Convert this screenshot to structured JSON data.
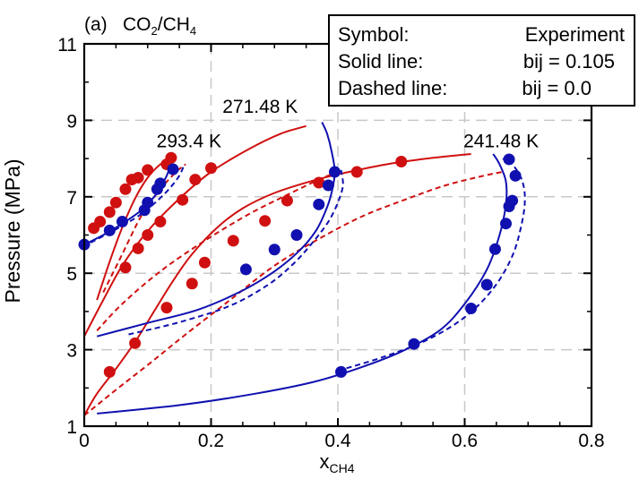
{
  "chart_data": {
    "type": "scatter",
    "panel_label": "(a)",
    "system_label": {
      "prefix": "CO",
      "sub1": "2",
      "mid": "/CH",
      "sub2": "4"
    },
    "xlabel": {
      "main": "x",
      "sub": "CH4"
    },
    "ylabel": "Pressure (MPa)",
    "xlim": [
      0,
      0.8
    ],
    "ylim": [
      1,
      11
    ],
    "x_ticks": [
      0,
      0.2,
      0.4,
      0.6,
      0.8
    ],
    "x_tick_labels": [
      "0",
      "0.2",
      "0.4",
      "0.6",
      "0.8"
    ],
    "y_ticks": [
      1,
      3,
      5,
      7,
      9,
      11
    ],
    "y_tick_labels": [
      "1",
      "3",
      "5",
      "7",
      "9",
      "11"
    ],
    "grid": true,
    "legend": {
      "placement": "top-right",
      "rows": [
        {
          "key": "Symbol:",
          "value": "Experiment"
        },
        {
          "key": "Solid line:",
          "value": "bij = 0.105"
        },
        {
          "key": "Dashed line:",
          "value": "bij = 0.0"
        }
      ]
    },
    "colors": {
      "liquid": "#d01010",
      "vapor": "#1010b0"
    },
    "annotations": [
      {
        "text": "293.4 K",
        "x": 0.114,
        "y": 8.3
      },
      {
        "text": "271.48 K",
        "x": 0.218,
        "y": 9.2
      },
      {
        "text": "241.48 K",
        "x": 0.598,
        "y": 8.3
      }
    ],
    "series": [
      {
        "role": "liquid",
        "style": "solid",
        "points": [
          [
            0.0,
            1.28
          ],
          [
            0.02,
            1.85
          ],
          [
            0.05,
            2.5
          ],
          [
            0.08,
            3.2
          ],
          [
            0.11,
            4.0
          ],
          [
            0.14,
            4.8
          ],
          [
            0.17,
            5.5
          ],
          [
            0.21,
            6.2
          ],
          [
            0.25,
            6.7
          ],
          [
            0.3,
            7.1
          ],
          [
            0.36,
            7.42
          ],
          [
            0.42,
            7.66
          ],
          [
            0.48,
            7.86
          ],
          [
            0.54,
            8.0
          ],
          [
            0.61,
            8.12
          ]
        ]
      },
      {
        "role": "liquid",
        "style": "dashed",
        "points": [
          [
            0.0,
            1.28
          ],
          [
            0.05,
            1.95
          ],
          [
            0.1,
            2.6
          ],
          [
            0.16,
            3.4
          ],
          [
            0.23,
            4.3
          ],
          [
            0.3,
            5.2
          ],
          [
            0.37,
            5.9
          ],
          [
            0.44,
            6.5
          ],
          [
            0.51,
            6.95
          ],
          [
            0.57,
            7.3
          ],
          [
            0.63,
            7.55
          ],
          [
            0.66,
            7.65
          ]
        ]
      },
      {
        "role": "vapor",
        "style": "solid",
        "points": [
          [
            0.02,
            1.33
          ],
          [
            0.15,
            1.55
          ],
          [
            0.27,
            1.85
          ],
          [
            0.36,
            2.15
          ],
          [
            0.43,
            2.5
          ],
          [
            0.5,
            2.95
          ],
          [
            0.56,
            3.5
          ],
          [
            0.6,
            4.2
          ],
          [
            0.635,
            5.1
          ],
          [
            0.655,
            6.0
          ],
          [
            0.665,
            6.8
          ],
          [
            0.665,
            7.4
          ],
          [
            0.655,
            7.85
          ],
          [
            0.645,
            8.12
          ]
        ]
      },
      {
        "role": "vapor",
        "style": "dashed",
        "points": [
          [
            0.4,
            2.45
          ],
          [
            0.47,
            2.8
          ],
          [
            0.54,
            3.25
          ],
          [
            0.6,
            3.85
          ],
          [
            0.645,
            4.6
          ],
          [
            0.675,
            5.45
          ],
          [
            0.69,
            6.3
          ],
          [
            0.695,
            6.95
          ],
          [
            0.69,
            7.45
          ],
          [
            0.675,
            7.85
          ],
          [
            0.66,
            8.0
          ]
        ]
      },
      {
        "role": "liquid",
        "style": "solid",
        "points": [
          [
            0.0,
            3.35
          ],
          [
            0.03,
            4.3
          ],
          [
            0.06,
            5.2
          ],
          [
            0.1,
            6.1
          ],
          [
            0.15,
            6.95
          ],
          [
            0.2,
            7.65
          ],
          [
            0.26,
            8.25
          ],
          [
            0.31,
            8.65
          ],
          [
            0.35,
            8.85
          ]
        ]
      },
      {
        "role": "liquid",
        "style": "dashed",
        "points": [
          [
            0.02,
            3.5
          ],
          [
            0.06,
            4.2
          ],
          [
            0.12,
            5.05
          ],
          [
            0.19,
            5.85
          ],
          [
            0.26,
            6.55
          ],
          [
            0.32,
            7.05
          ],
          [
            0.37,
            7.45
          ],
          [
            0.4,
            7.65
          ]
        ]
      },
      {
        "role": "vapor",
        "style": "solid",
        "points": [
          [
            0.02,
            3.35
          ],
          [
            0.1,
            3.7
          ],
          [
            0.18,
            4.05
          ],
          [
            0.25,
            4.55
          ],
          [
            0.3,
            5.05
          ],
          [
            0.34,
            5.6
          ],
          [
            0.365,
            6.1
          ],
          [
            0.38,
            6.6
          ],
          [
            0.39,
            7.1
          ],
          [
            0.395,
            7.65
          ],
          [
            0.39,
            8.2
          ],
          [
            0.383,
            8.65
          ],
          [
            0.375,
            8.95
          ]
        ]
      },
      {
        "role": "vapor",
        "style": "dashed",
        "points": [
          [
            0.07,
            3.4
          ],
          [
            0.15,
            3.72
          ],
          [
            0.23,
            4.15
          ],
          [
            0.29,
            4.7
          ],
          [
            0.33,
            5.25
          ],
          [
            0.36,
            5.8
          ],
          [
            0.385,
            6.35
          ],
          [
            0.4,
            6.85
          ],
          [
            0.408,
            7.3
          ],
          [
            0.405,
            7.7
          ]
        ]
      },
      {
        "role": "liquid",
        "style": "solid",
        "points": [
          [
            0.02,
            4.3
          ],
          [
            0.04,
            5.3
          ],
          [
            0.06,
            6.2
          ],
          [
            0.08,
            6.95
          ],
          [
            0.1,
            7.5
          ],
          [
            0.12,
            7.85
          ],
          [
            0.14,
            8.05
          ]
        ]
      },
      {
        "role": "liquid",
        "style": "dashed",
        "points": [
          [
            0.03,
            4.5
          ],
          [
            0.06,
            5.5
          ],
          [
            0.09,
            6.5
          ],
          [
            0.12,
            7.2
          ],
          [
            0.145,
            7.65
          ],
          [
            0.16,
            7.85
          ]
        ]
      },
      {
        "role": "vapor",
        "style": "solid",
        "points": [
          [
            0.0,
            5.75
          ],
          [
            0.03,
            6.0
          ],
          [
            0.06,
            6.3
          ],
          [
            0.09,
            6.65
          ],
          [
            0.115,
            7.1
          ],
          [
            0.13,
            7.55
          ],
          [
            0.138,
            7.9
          ],
          [
            0.145,
            8.05
          ]
        ]
      },
      {
        "role": "vapor",
        "style": "dashed",
        "points": [
          [
            0.01,
            5.8
          ],
          [
            0.05,
            6.15
          ],
          [
            0.09,
            6.55
          ],
          [
            0.125,
            7.05
          ],
          [
            0.148,
            7.5
          ],
          [
            0.158,
            7.85
          ]
        ]
      }
    ],
    "markers": [
      {
        "role": "liquid",
        "points": [
          [
            0.04,
            2.42
          ],
          [
            0.08,
            3.17
          ],
          [
            0.13,
            4.1
          ],
          [
            0.17,
            4.73
          ],
          [
            0.19,
            5.28
          ],
          [
            0.235,
            5.85
          ],
          [
            0.285,
            6.37
          ],
          [
            0.32,
            6.9
          ],
          [
            0.37,
            7.37
          ],
          [
            0.43,
            7.65
          ],
          [
            0.5,
            7.92
          ]
        ]
      },
      {
        "role": "vapor",
        "points": [
          [
            0.405,
            2.42
          ],
          [
            0.52,
            3.15
          ],
          [
            0.61,
            4.08
          ],
          [
            0.635,
            4.7
          ],
          [
            0.648,
            5.63
          ],
          [
            0.665,
            6.3
          ],
          [
            0.67,
            6.75
          ],
          [
            0.675,
            6.9
          ],
          [
            0.68,
            7.55
          ],
          [
            0.67,
            7.98
          ]
        ]
      },
      {
        "role": "liquid",
        "points": [
          [
            0.065,
            5.15
          ],
          [
            0.085,
            5.65
          ],
          [
            0.1,
            6.0
          ],
          [
            0.12,
            6.35
          ],
          [
            0.155,
            6.92
          ],
          [
            0.175,
            7.45
          ],
          [
            0.2,
            7.75
          ]
        ]
      },
      {
        "role": "vapor",
        "points": [
          [
            0.255,
            5.1
          ],
          [
            0.3,
            5.62
          ],
          [
            0.335,
            6.0
          ],
          [
            0.37,
            6.8
          ],
          [
            0.385,
            7.3
          ],
          [
            0.395,
            7.65
          ]
        ]
      },
      {
        "role": "liquid",
        "points": [
          [
            0.015,
            6.18
          ],
          [
            0.025,
            6.35
          ],
          [
            0.04,
            6.6
          ],
          [
            0.05,
            6.85
          ],
          [
            0.065,
            7.2
          ],
          [
            0.075,
            7.45
          ],
          [
            0.085,
            7.5
          ],
          [
            0.1,
            7.7
          ],
          [
            0.13,
            7.85
          ],
          [
            0.137,
            8.02
          ]
        ]
      },
      {
        "role": "vapor",
        "points": [
          [
            0.0,
            5.75
          ],
          [
            0.04,
            6.12
          ],
          [
            0.06,
            6.35
          ],
          [
            0.095,
            6.65
          ],
          [
            0.1,
            6.85
          ],
          [
            0.115,
            7.2
          ],
          [
            0.12,
            7.35
          ],
          [
            0.14,
            7.72
          ]
        ]
      }
    ]
  }
}
